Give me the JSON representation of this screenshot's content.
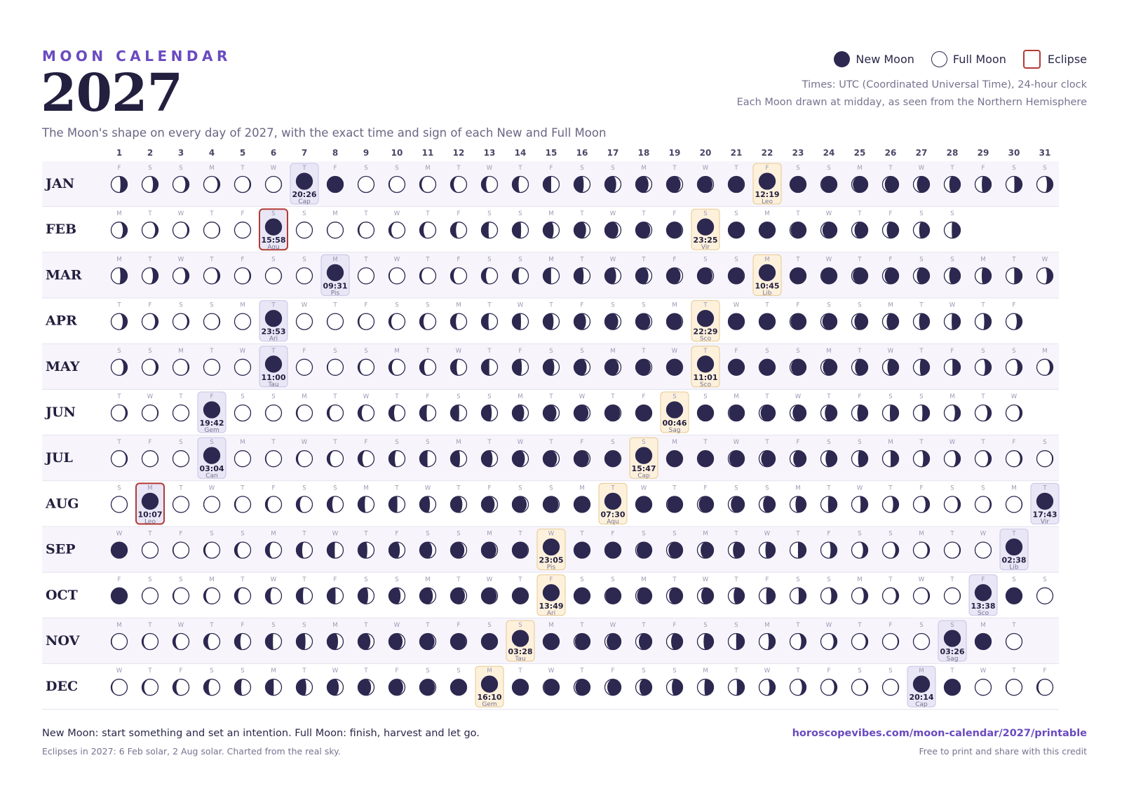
{
  "header": {
    "kicker": "MOON CALENDAR",
    "year": "2027",
    "subtitle": "The Moon's shape on every day of 2027, with the exact time and sign of each New and Full Moon",
    "note_times": "Times: UTC (Coordinated Universal Time), 24-hour clock",
    "note_drawn": "Each Moon drawn at midday, as seen from the Northern Hemisphere"
  },
  "legend": {
    "new_moon": "New Moon",
    "full_moon": "Full Moon",
    "eclipse": "Eclipse"
  },
  "colors": {
    "accent": "#6a4bbf",
    "moon_dark": "#2c2850",
    "new_box": "#e9e6f6",
    "full_box": "#fdf1dc",
    "full_border": "#e6c98f",
    "eclipse_border": "#b23a36"
  },
  "calendar": {
    "day_numbers": [
      "1",
      "2",
      "3",
      "4",
      "5",
      "6",
      "7",
      "8",
      "9",
      "10",
      "11",
      "12",
      "13",
      "14",
      "15",
      "16",
      "17",
      "18",
      "19",
      "20",
      "21",
      "22",
      "23",
      "24",
      "25",
      "26",
      "27",
      "28",
      "29",
      "30",
      "31"
    ],
    "months": [
      {
        "label": "JAN",
        "days": 31,
        "weekdays": "FSSMTWTFSSMTWTFSSMTWTFSSMTWTFSS",
        "events": [
          {
            "day": 7,
            "type": "new",
            "time": "20:26",
            "sign": "Cap"
          },
          {
            "day": 22,
            "type": "full",
            "time": "12:19",
            "sign": "Leo"
          }
        ]
      },
      {
        "label": "FEB",
        "days": 28,
        "weekdays": "MTWTFSSMTWTFSSMTWTFSSMTWTFSS",
        "events": [
          {
            "day": 6,
            "type": "new",
            "time": "15:58",
            "sign": "Aqu",
            "eclipse": true
          },
          {
            "day": 20,
            "type": "full",
            "time": "23:25",
            "sign": "Vir"
          }
        ]
      },
      {
        "label": "MAR",
        "days": 31,
        "weekdays": "MTWTFSSMTWTFSSMTWTFSSMTWTFSSMTW",
        "events": [
          {
            "day": 8,
            "type": "new",
            "time": "09:31",
            "sign": "Pis"
          },
          {
            "day": 22,
            "type": "full",
            "time": "10:45",
            "sign": "Lib"
          }
        ]
      },
      {
        "label": "APR",
        "days": 30,
        "weekdays": "TFSSMTWTFSSMTWTFSSMTWTFSSMTWTF",
        "events": [
          {
            "day": 6,
            "type": "new",
            "time": "23:53",
            "sign": "Ari"
          },
          {
            "day": 20,
            "type": "full",
            "time": "22:29",
            "sign": "Sco"
          }
        ]
      },
      {
        "label": "MAY",
        "days": 31,
        "weekdays": "SSMTWTFSSMTWTFSSMTWTFSSMTWTFSSM",
        "events": [
          {
            "day": 6,
            "type": "new",
            "time": "11:00",
            "sign": "Tau"
          },
          {
            "day": 20,
            "type": "full",
            "time": "11:01",
            "sign": "Sco"
          }
        ]
      },
      {
        "label": "JUN",
        "days": 30,
        "weekdays": "TWTFSSMTWTFSSMTWTFSSMTWTFSSMTW",
        "events": [
          {
            "day": 4,
            "type": "new",
            "time": "19:42",
            "sign": "Gem"
          },
          {
            "day": 19,
            "type": "full",
            "time": "00:46",
            "sign": "Sag"
          }
        ]
      },
      {
        "label": "JUL",
        "days": 31,
        "weekdays": "TFSSMTWTFSSMTWTFSSMTWTFSSMTWTFS",
        "events": [
          {
            "day": 4,
            "type": "new",
            "time": "03:04",
            "sign": "Can"
          },
          {
            "day": 18,
            "type": "full",
            "time": "15:47",
            "sign": "Cap"
          }
        ]
      },
      {
        "label": "AUG",
        "days": 31,
        "weekdays": "SMTWTFSSMTWTFSSMTWTFSSMTWTFSSMT",
        "events": [
          {
            "day": 2,
            "type": "new",
            "time": "10:07",
            "sign": "Leo",
            "eclipse": true
          },
          {
            "day": 17,
            "type": "full",
            "time": "07:30",
            "sign": "Aqu"
          },
          {
            "day": 31,
            "type": "new",
            "time": "17:43",
            "sign": "Vir"
          }
        ]
      },
      {
        "label": "SEP",
        "days": 30,
        "weekdays": "WTFSSMTWTFSSMTWTFSSMTWTFSSMTWT",
        "events": [
          {
            "day": 15,
            "type": "full",
            "time": "23:05",
            "sign": "Pis"
          },
          {
            "day": 30,
            "type": "new",
            "time": "02:38",
            "sign": "Lib"
          }
        ]
      },
      {
        "label": "OCT",
        "days": 31,
        "weekdays": "FSSMTWTFSSMTWTFSSMTWTFSSMTWTFSS",
        "events": [
          {
            "day": 15,
            "type": "full",
            "time": "13:49",
            "sign": "Ari"
          },
          {
            "day": 29,
            "type": "new",
            "time": "13:38",
            "sign": "Sco"
          }
        ]
      },
      {
        "label": "NOV",
        "days": 30,
        "weekdays": "MTWTFSSMTWTFSSMTWTFSSMTWTFSSMT",
        "events": [
          {
            "day": 14,
            "type": "full",
            "time": "03:28",
            "sign": "Tau"
          },
          {
            "day": 28,
            "type": "new",
            "time": "03:26",
            "sign": "Sag"
          }
        ]
      },
      {
        "label": "DEC",
        "days": 31,
        "weekdays": "WTFSSMTWTFSSMTWTFSSMTWTFSSMTWTF",
        "events": [
          {
            "day": 13,
            "type": "full",
            "time": "16:10",
            "sign": "Gem"
          },
          {
            "day": 27,
            "type": "new",
            "time": "20:14",
            "sign": "Cap"
          }
        ]
      }
    ]
  },
  "footer": {
    "tip": "New Moon: start something and set an intention. Full Moon: finish, harvest and let go.",
    "eclipses": "Eclipses in 2027: 6 Feb solar, 2 Aug solar. Charted from the real sky.",
    "credit_link": "horoscopevibes.com/moon-calendar/2027/printable",
    "credit_note": "Free to print and share with this credit"
  }
}
